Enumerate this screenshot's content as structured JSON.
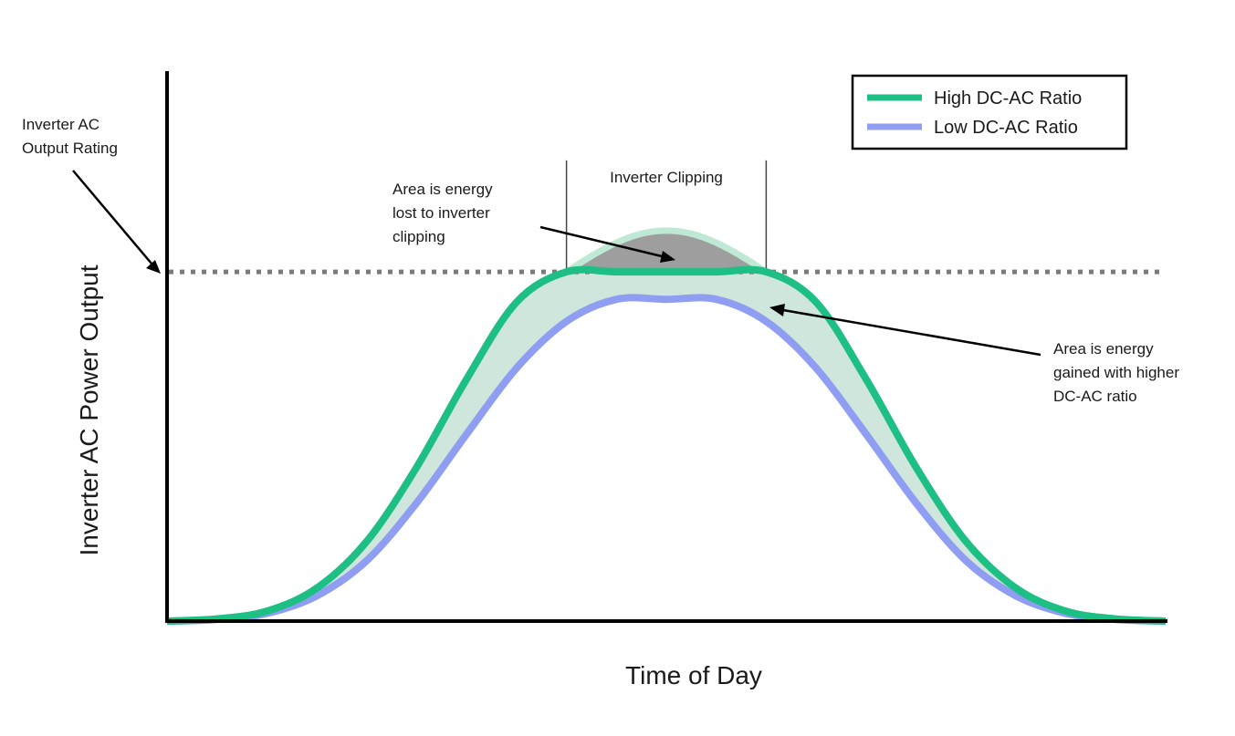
{
  "chart_data": {
    "type": "line",
    "title": "",
    "xlabel": "Time of Day",
    "ylabel": "Inverter AC Power Output",
    "x": [
      0,
      5,
      10,
      15,
      20,
      25,
      30,
      35,
      40,
      45,
      50,
      55,
      60,
      65,
      70,
      75,
      80,
      85,
      90,
      95,
      100
    ],
    "xlim": [
      0,
      100
    ],
    "ylim": [
      0,
      100
    ],
    "grid": false,
    "legend": "top-right",
    "threshold": {
      "value": 63.5,
      "label": "Inverter AC Output Rating",
      "style": "dotted"
    },
    "series": [
      {
        "name": "High DC-AC Ratio",
        "color": "#1dbf85",
        "values": [
          0,
          0.4,
          1.8,
          6,
          14.5,
          28,
          44,
          58,
          63.5,
          63.5,
          63.5,
          63.5,
          63.5,
          58,
          44,
          28,
          14.5,
          6,
          1.8,
          0.4,
          0
        ],
        "unclipped_peak": 71
      },
      {
        "name": "Low DC-AC Ratio",
        "color": "#8f9df2",
        "values": [
          0,
          0.3,
          1.4,
          4.6,
          11,
          21.5,
          34,
          46,
          54.5,
          58.5,
          58.5,
          58.5,
          54.5,
          46,
          34,
          21.5,
          11,
          4.6,
          1.4,
          0.3,
          0
        ]
      }
    ],
    "annotations": [
      {
        "id": "clipping",
        "text": "Inverter Clipping"
      },
      {
        "id": "lost",
        "lines": [
          "Area is energy",
          "lost to inverter",
          "clipping"
        ]
      },
      {
        "id": "gained",
        "lines": [
          "Area is energy",
          "gained with higher",
          "DC-AC ratio"
        ]
      },
      {
        "id": "rating",
        "lines": [
          "Inverter AC",
          "Output Rating"
        ]
      }
    ]
  },
  "colors": {
    "high": "#1dbf85",
    "low": "#8f9df2",
    "gained_fill": "#cfe6dc",
    "lost_fill": "#9e9e9e",
    "clipped_curve": "#bfe8d5",
    "threshold": "#7a7a7a"
  }
}
